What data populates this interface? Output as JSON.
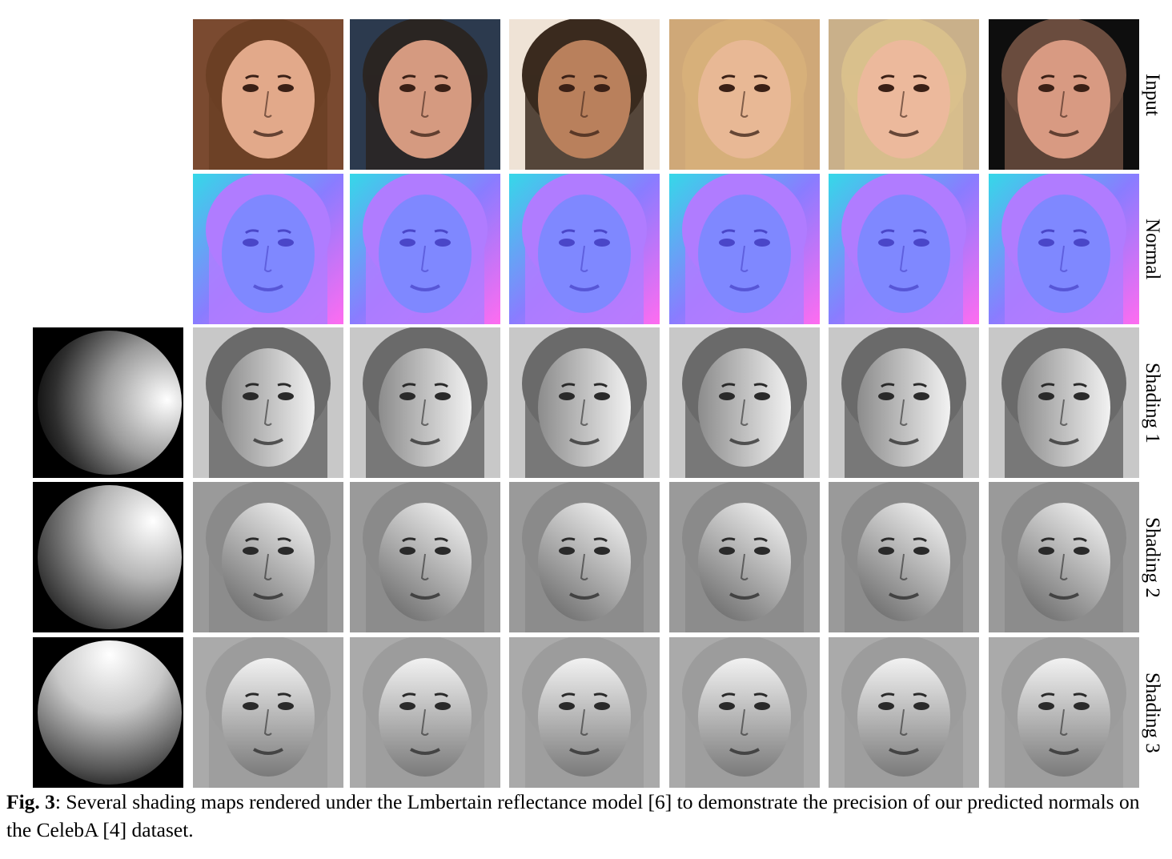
{
  "row_labels": {
    "input": "Input",
    "normal": "Normal",
    "shading1": "Shading 1",
    "shading2": "Shading 2",
    "shading3": "Shading 3"
  },
  "caption": {
    "label": "Fig. 3",
    "text": ": Several shading maps rendered under the Lmbertain reflectance model [6] to demonstrate the precision of our predicted normals on the CelebA [4] dataset."
  },
  "subjects": [
    {
      "skin": "#e2a98a",
      "hair": "#6b3f24",
      "bg": "#7a4a30"
    },
    {
      "skin": "#d59a80",
      "hair": "#2a2522",
      "bg": "#2c3a4e"
    },
    {
      "skin": "#b9805c",
      "hair": "#3a2a1e",
      "bg": "#efe3d6"
    },
    {
      "skin": "#e8b895",
      "hair": "#d7b07a",
      "bg": "#cfa878"
    },
    {
      "skin": "#ecb99c",
      "hair": "#d9c08c",
      "bg": "#c9b08a"
    },
    {
      "skin": "#d89a82",
      "hair": "#6a4c3e",
      "bg": "#0e0e0e"
    }
  ]
}
